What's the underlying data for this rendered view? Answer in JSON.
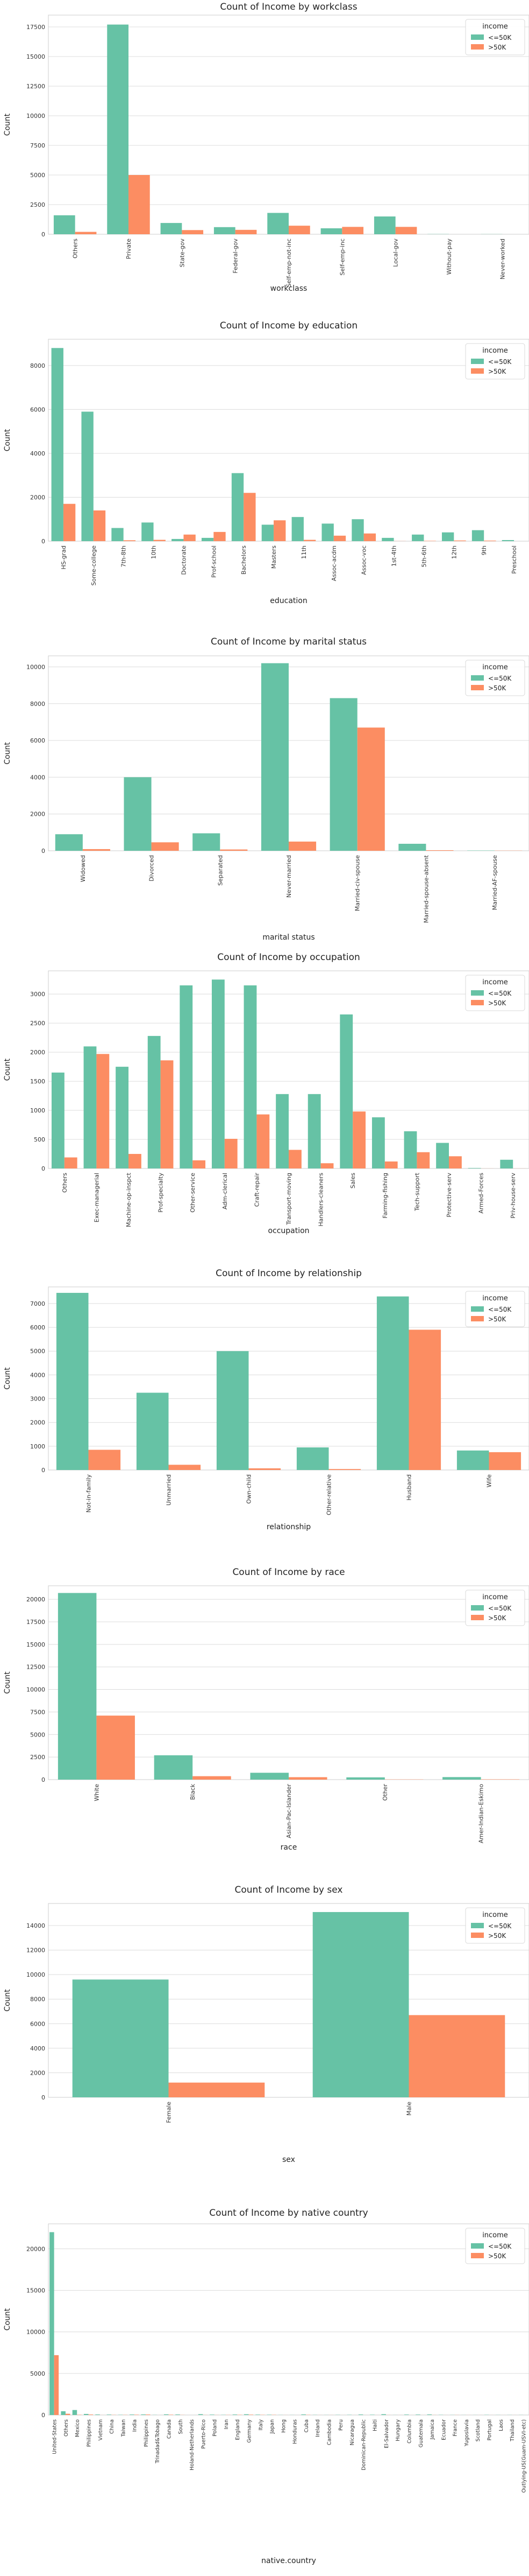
{
  "colors": {
    "le50k": "#66c2a5",
    "gt50k": "#fc8d62",
    "grid": "#dcdcdc",
    "frame": "#cccccc"
  },
  "chart_data": [
    {
      "type": "bar",
      "title": "Count of Income by workclass",
      "xlabel": "workclass",
      "ylabel": "Count",
      "legend": {
        "title": "income",
        "placement": "top-right"
      },
      "ylim": [
        0,
        18500
      ],
      "yticks": [
        0,
        2500,
        5000,
        7500,
        10000,
        12500,
        15000,
        17500
      ],
      "grid": true,
      "categories": [
        "Others",
        "Private",
        "State-gov",
        "Federal-gov",
        "Self-emp-not-inc",
        "Self-emp-inc",
        "Local-gov",
        "Without-pay",
        "Never-worked"
      ],
      "series": [
        {
          "name": "<=50K",
          "values": [
            1600,
            17700,
            950,
            600,
            1800,
            500,
            1500,
            15,
            10
          ]
        },
        {
          "name": ">50K",
          "values": [
            200,
            5000,
            350,
            370,
            720,
            620,
            620,
            0,
            0
          ]
        }
      ]
    },
    {
      "type": "bar",
      "title": "Count of Income by education",
      "xlabel": "education",
      "ylabel": "Count",
      "legend": {
        "title": "income",
        "placement": "top-right"
      },
      "ylim": [
        0,
        9200
      ],
      "yticks": [
        0,
        2000,
        4000,
        6000,
        8000
      ],
      "grid": true,
      "categories": [
        "HS-grad",
        "Some-college",
        "7th-8th",
        "10th",
        "Doctorate",
        "Prof-school",
        "Bachelors",
        "Masters",
        "11th",
        "Assoc-acdm",
        "Assoc-voc",
        "1st-4th",
        "5th-6th",
        "12th",
        "9th",
        "Preschool"
      ],
      "series": [
        {
          "name": "<=50K",
          "values": [
            8800,
            5900,
            600,
            850,
            100,
            150,
            3100,
            750,
            1100,
            800,
            1000,
            150,
            300,
            400,
            500,
            50
          ]
        },
        {
          "name": ">50K",
          "values": [
            1700,
            1400,
            40,
            60,
            300,
            420,
            2200,
            950,
            60,
            250,
            350,
            5,
            15,
            30,
            25,
            0
          ]
        }
      ]
    },
    {
      "type": "bar",
      "title": "Count of Income by marital status",
      "xlabel": "marital status",
      "ylabel": "Count",
      "legend": {
        "title": "income",
        "placement": "top-right"
      },
      "ylim": [
        0,
        10600
      ],
      "yticks": [
        0,
        2000,
        4000,
        6000,
        8000,
        10000
      ],
      "grid": true,
      "categories": [
        "Widowed",
        "Divorced",
        "Separated",
        "Never-married",
        "Married-civ-spouse",
        "Married-spouse-absent",
        "Married-AF-spouse"
      ],
      "series": [
        {
          "name": "<=50K",
          "values": [
            900,
            4000,
            950,
            10200,
            8300,
            380,
            15
          ]
        },
        {
          "name": ">50K",
          "values": [
            90,
            460,
            70,
            500,
            6700,
            30,
            10
          ]
        }
      ]
    },
    {
      "type": "bar",
      "title": "Count of Income by occupation",
      "xlabel": "occupation",
      "ylabel": "Count",
      "legend": {
        "title": "income",
        "placement": "top-right"
      },
      "ylim": [
        0,
        3400
      ],
      "yticks": [
        0,
        500,
        1000,
        1500,
        2000,
        2500,
        3000
      ],
      "grid": true,
      "categories": [
        "Others",
        "Exec-managerial",
        "Machine-op-inspct",
        "Prof-specialty",
        "Other-service",
        "Adm-clerical",
        "Craft-repair",
        "Transport-moving",
        "Handlers-cleaners",
        "Sales",
        "Farming-fishing",
        "Tech-support",
        "Protective-serv",
        "Armed-Forces",
        "Priv-house-serv"
      ],
      "series": [
        {
          "name": "<=50K",
          "values": [
            1650,
            2100,
            1750,
            2280,
            3150,
            3250,
            3150,
            1280,
            1280,
            2650,
            880,
            640,
            440,
            8,
            150
          ]
        },
        {
          "name": ">50K",
          "values": [
            190,
            1970,
            250,
            1860,
            140,
            510,
            930,
            320,
            90,
            980,
            120,
            280,
            210,
            1,
            1
          ]
        }
      ]
    },
    {
      "type": "bar",
      "title": "Count of Income by relationship",
      "xlabel": "relationship",
      "ylabel": "Count",
      "legend": {
        "title": "income",
        "placement": "top-right"
      },
      "ylim": [
        0,
        7700
      ],
      "yticks": [
        0,
        1000,
        2000,
        3000,
        4000,
        5000,
        6000,
        7000
      ],
      "grid": true,
      "categories": [
        "Not-in-family",
        "Unmarried",
        "Own-child",
        "Other-relative",
        "Husband",
        "Wife"
      ],
      "series": [
        {
          "name": "<=50K",
          "values": [
            7450,
            3250,
            5000,
            950,
            7300,
            820
          ]
        },
        {
          "name": ">50K",
          "values": [
            850,
            220,
            70,
            40,
            5900,
            750
          ]
        }
      ]
    },
    {
      "type": "bar",
      "title": "Count of Income by race",
      "xlabel": "race",
      "ylabel": "Count",
      "legend": {
        "title": "income",
        "placement": "top-right"
      },
      "ylim": [
        0,
        21500
      ],
      "yticks": [
        0,
        2500,
        5000,
        7500,
        10000,
        12500,
        15000,
        17500,
        20000
      ],
      "grid": true,
      "categories": [
        "White",
        "Black",
        "Asian-Pac-Islander",
        "Other",
        "Amer-Indian-Eskimo"
      ],
      "series": [
        {
          "name": "<=50K",
          "values": [
            20700,
            2700,
            760,
            250,
            280
          ]
        },
        {
          "name": ">50K",
          "values": [
            7100,
            380,
            270,
            25,
            35
          ]
        }
      ]
    },
    {
      "type": "bar",
      "title": "Count of Income by sex",
      "xlabel": "sex",
      "ylabel": "Count",
      "legend": {
        "title": "income",
        "placement": "top-right"
      },
      "ylim": [
        0,
        15800
      ],
      "yticks": [
        0,
        2000,
        4000,
        6000,
        8000,
        10000,
        12000,
        14000
      ],
      "grid": true,
      "categories": [
        "Female",
        "Male"
      ],
      "series": [
        {
          "name": "<=50K",
          "values": [
            9600,
            15100
          ]
        },
        {
          "name": ">50K",
          "values": [
            1200,
            6700
          ]
        }
      ]
    },
    {
      "type": "bar",
      "title": "Count of Income by native country",
      "xlabel": "native.country",
      "ylabel": "Count",
      "legend": {
        "title": "income",
        "placement": "top-right"
      },
      "ylim": [
        0,
        23000
      ],
      "yticks": [
        0,
        5000,
        10000,
        15000,
        20000
      ],
      "grid": true,
      "categories": [
        "United-States",
        "Others",
        "Mexico",
        "Philippines",
        "Vietnam",
        "China",
        "Taiwan",
        "India",
        "Philippines",
        "Trinadad&Tobago",
        "Canada",
        "South",
        "Holand-Netherlands",
        "Puerto-Rico",
        "Poland",
        "Iran",
        "England",
        "Germany",
        "Italy",
        "Japan",
        "Hong",
        "Honduras",
        "Cuba",
        "Ireland",
        "Cambodia",
        "Peru",
        "Nicaragua",
        "Dominican-Republic",
        "Haiti",
        "El-Salvador",
        "Hungary",
        "Columbia",
        "Guatemala",
        "Jamaica",
        "Ecuador",
        "France",
        "Yugoslavia",
        "Scotland",
        "Portugal",
        "Laos",
        "Thailand",
        "Outlying-US(Guam-USVI-etc)"
      ],
      "series": [
        {
          "name": "<=50K",
          "values": [
            22000,
            450,
            600,
            130,
            65,
            55,
            30,
            60,
            70,
            18,
            80,
            65,
            1,
            100,
            50,
            25,
            60,
            90,
            50,
            40,
            15,
            12,
            70,
            20,
            12,
            25,
            30,
            65,
            40,
            95,
            10,
            55,
            55,
            70,
            25,
            15,
            10,
            10,
            25,
            15,
            15,
            14
          ]
        },
        {
          "name": ">50K",
          "values": [
            7200,
            150,
            35,
            60,
            5,
            20,
            20,
            40,
            60,
            2,
            40,
            15,
            0,
            12,
            12,
            18,
            30,
            45,
            25,
            25,
            6,
            1,
            25,
            5,
            7,
            2,
            2,
            2,
            4,
            10,
            3,
            2,
            3,
            10,
            4,
            12,
            6,
            3,
            4,
            2,
            3,
            0
          ]
        }
      ]
    }
  ]
}
